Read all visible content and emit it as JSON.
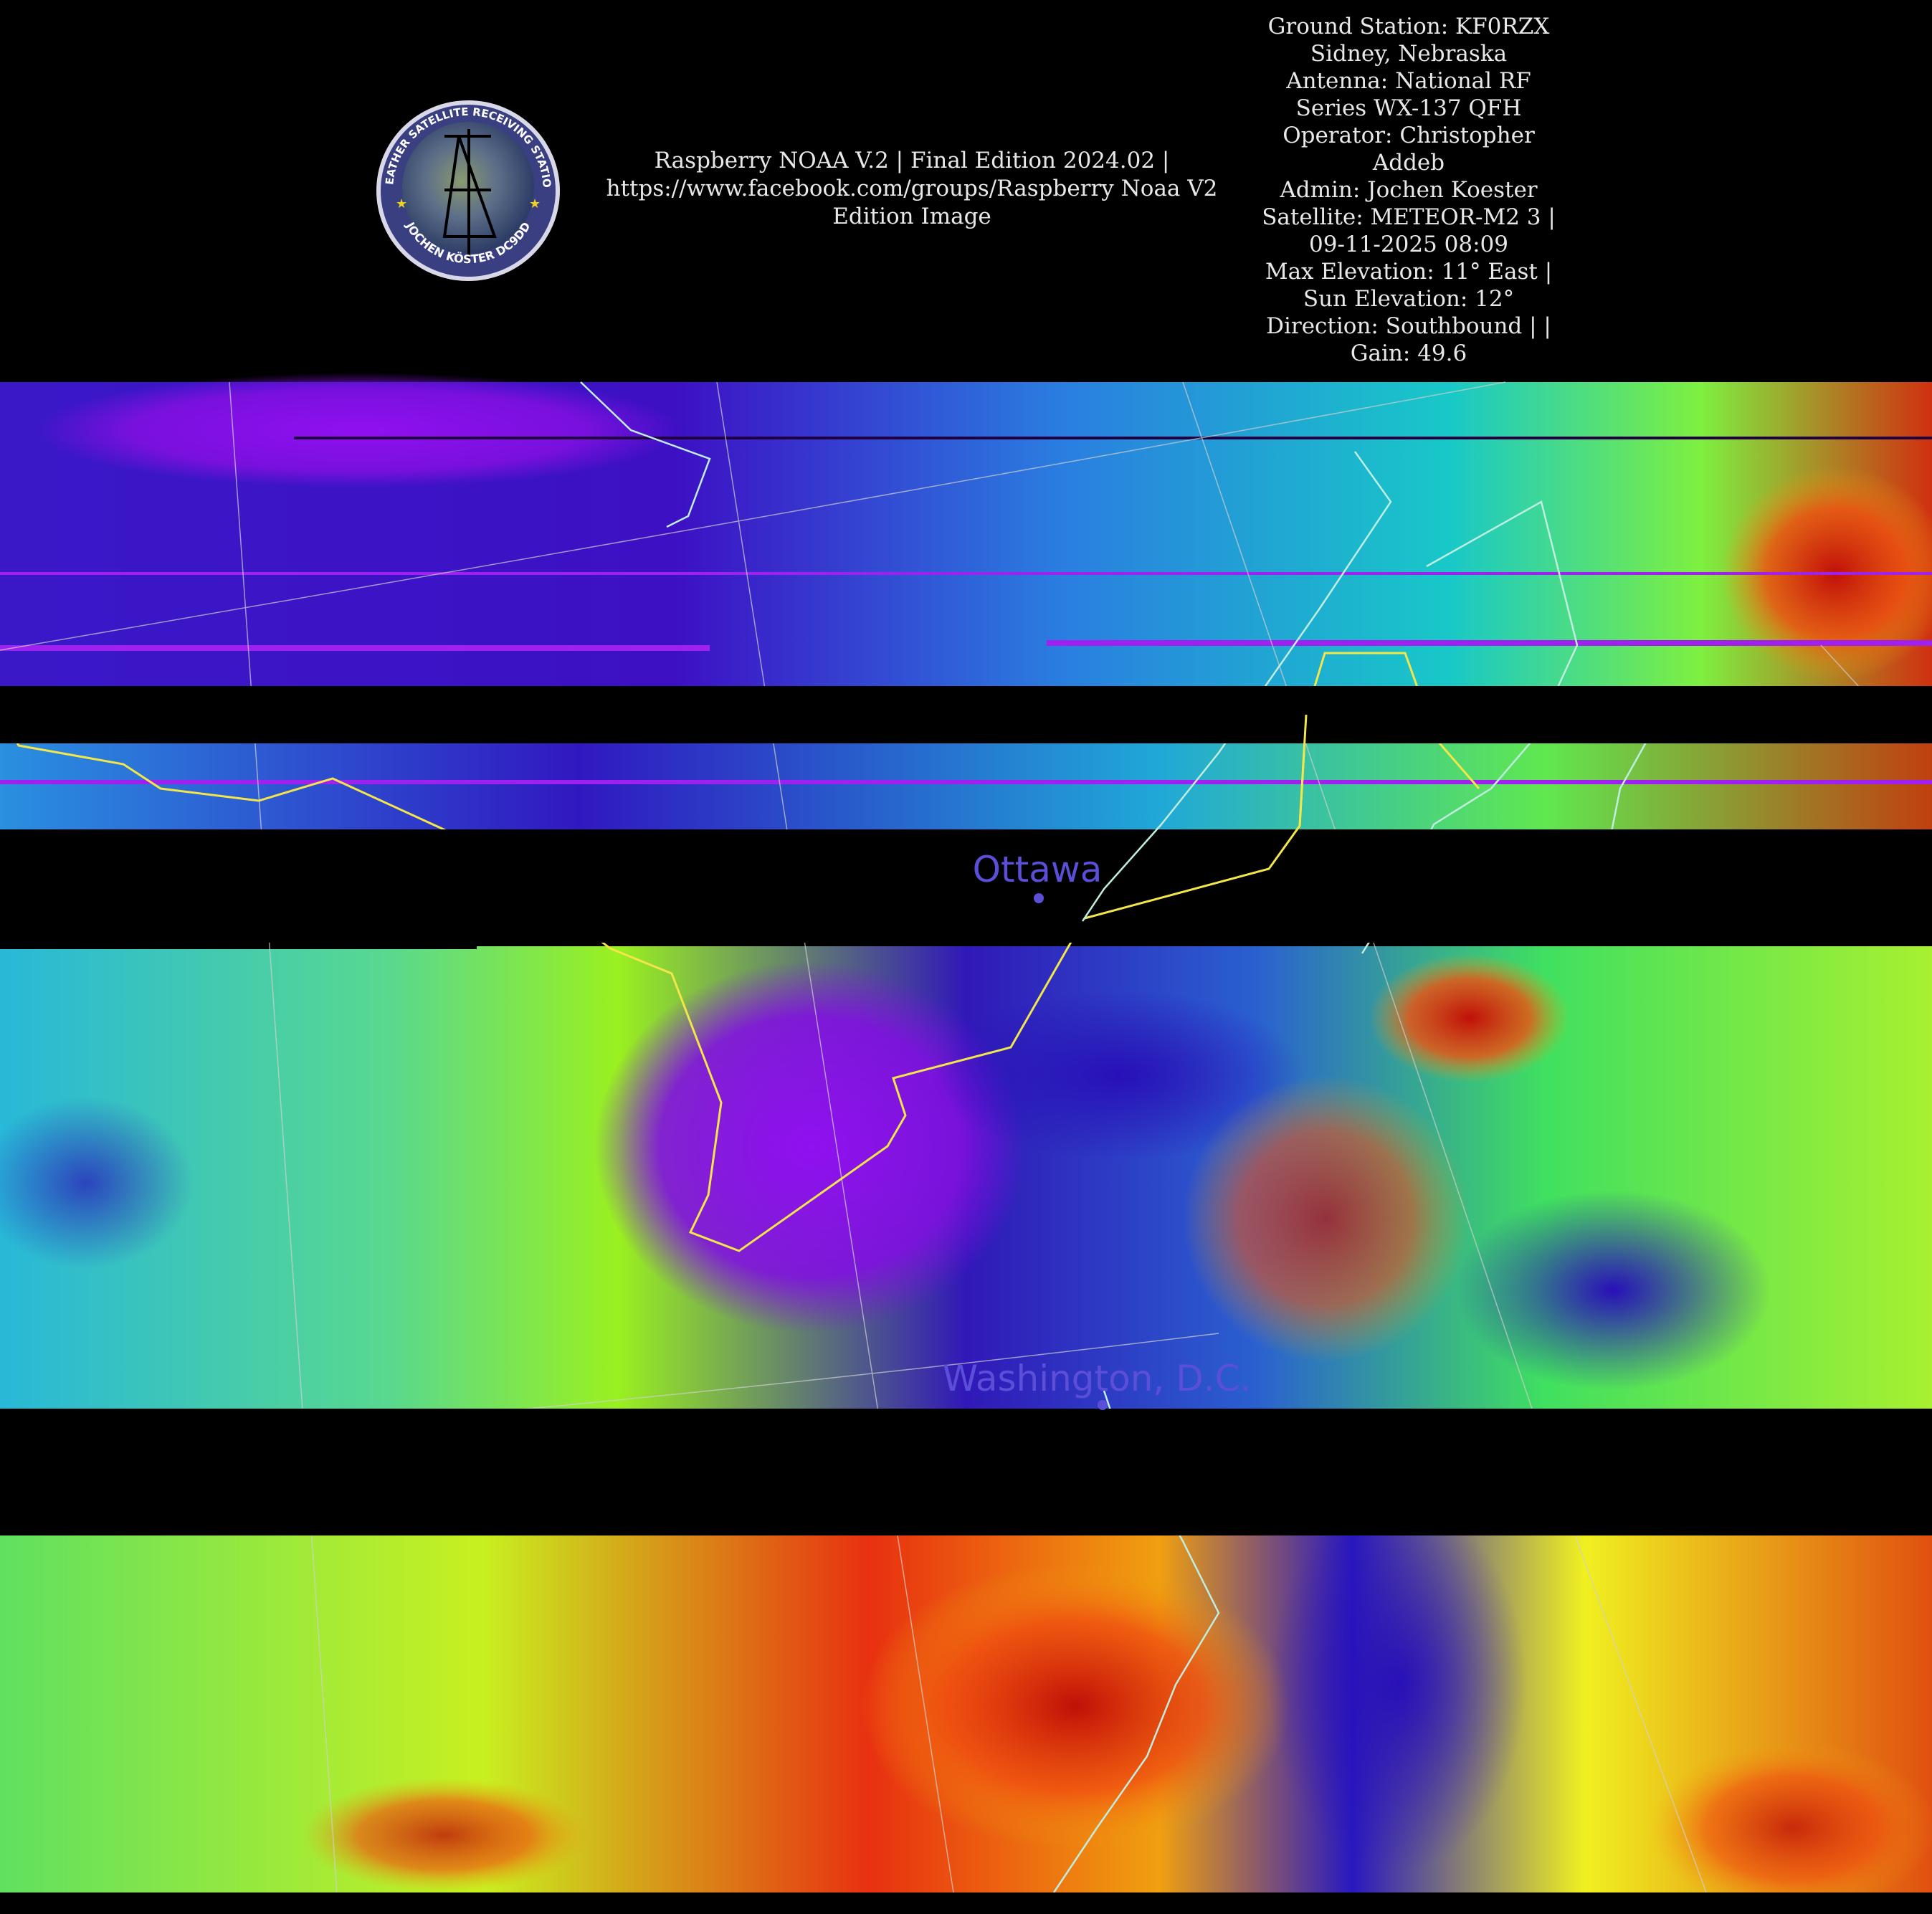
{
  "header": {
    "caption_lines": [
      "Raspberry NOAA V.2 | Final Edition 2024.02 |",
      "https://www.facebook.com/groups/Raspberry Noaa V2",
      "Edition Image"
    ],
    "station_lines": [
      "Ground Station: KF0RZX",
      "Sidney, Nebraska",
      "Antenna: National RF",
      "Series WX-137 QFH",
      "Operator: Christopher",
      "Addeb",
      "Admin: Jochen Koester",
      "Satellite: METEOR-M2 3 |",
      "09-11-2025 08:09",
      "Max Elevation: 11° East |",
      "Sun Elevation: 12°",
      "Direction: Southbound | |",
      "Gain: 49.6"
    ],
    "logo": {
      "top_text": "WEATHER SATELLITE RECEIVING STATION",
      "bottom_text": "JOCHEN KÖSTER DC9DD"
    }
  },
  "map": {
    "cities": [
      {
        "name": "Ottawa"
      },
      {
        "name": "Washington, D.C."
      }
    ],
    "colors": {
      "border": "#f2e64a",
      "coastline": "#bfeee0",
      "city_label": "#5b4fd8",
      "gap": "#000000"
    }
  }
}
